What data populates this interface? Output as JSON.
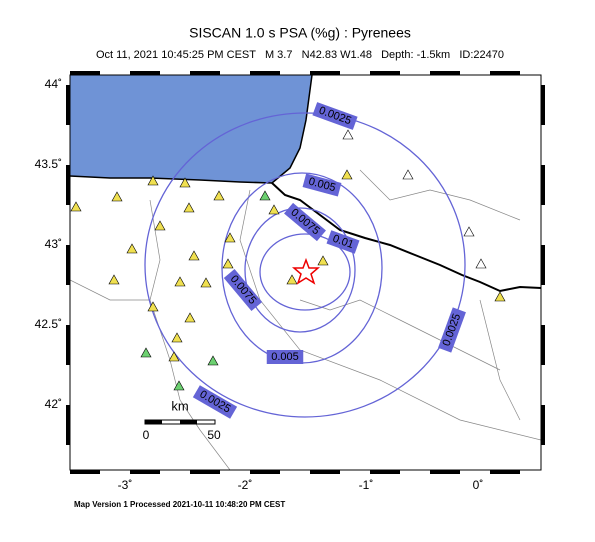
{
  "header": {
    "title": "SISCAN 1.0 s PSA (%g) : Pyrenees",
    "subtitle": "Oct 11, 2021 10:45:25 PM CEST   M 3.7   N42.83 W1.48   Depth: -1.5km   ID:22470"
  },
  "axes": {
    "lat_labels": [
      "44˚",
      "43.5˚",
      "43˚",
      "42.5˚",
      "42˚"
    ],
    "lon_labels": [
      "-3˚",
      "-2˚",
      "-1˚",
      "0˚"
    ]
  },
  "contours": [
    "0.0025",
    "0.005",
    "0.0075",
    "0.01"
  ],
  "scale_bar": {
    "unit": "km",
    "labels": [
      "0",
      "50"
    ]
  },
  "footer": "Map Version 1 Processed 2021-10-11 10:48:20 PM CEST"
}
